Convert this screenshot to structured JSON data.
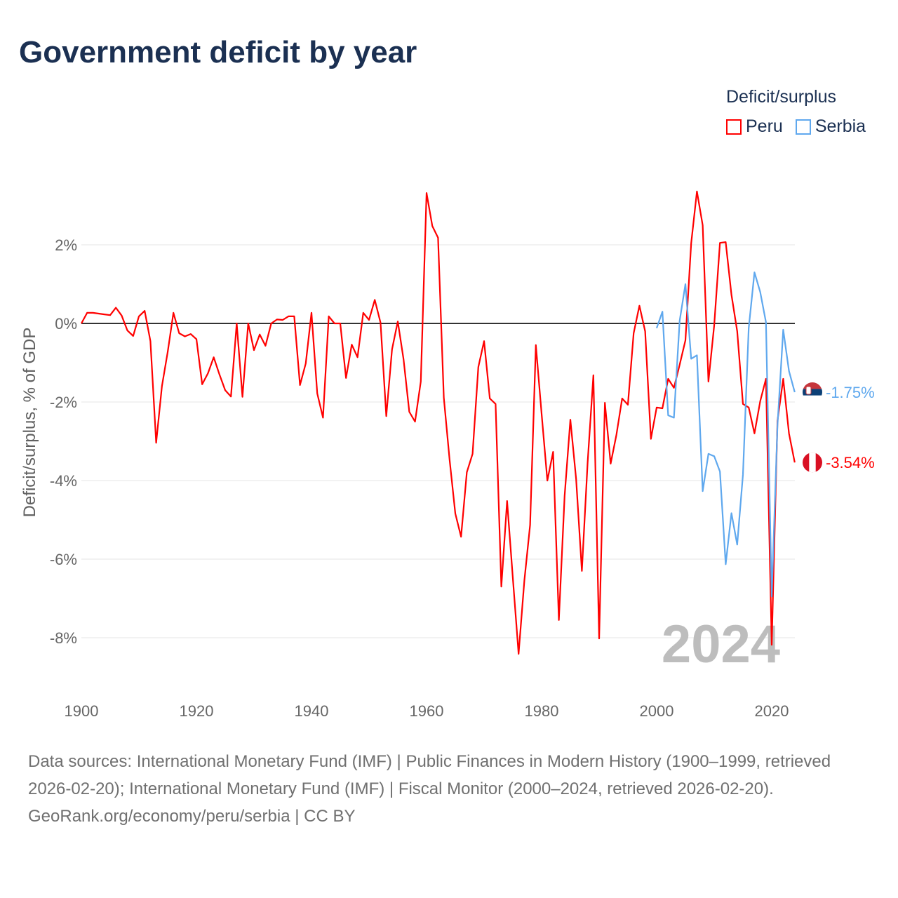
{
  "title": "Government deficit by year",
  "legend": {
    "title": "Deficit/surplus",
    "items": [
      {
        "name": "Peru",
        "color": "#ff0000"
      },
      {
        "name": "Serbia",
        "color": "#5fa8ee"
      }
    ]
  },
  "chart_data": {
    "type": "line",
    "title": "Government deficit by year",
    "xlabel": "",
    "ylabel": "Deficit/surplus, % of GDP",
    "xlim": [
      1900,
      2024
    ],
    "ylim": [
      -9.3,
      3.6
    ],
    "x_ticks": [
      1900,
      1920,
      1940,
      1960,
      1980,
      2000,
      2020
    ],
    "x_tick_labels": [
      "1900",
      "1920",
      "1940",
      "1960",
      "1980",
      "2000",
      "2020"
    ],
    "y_ticks": [
      2,
      0,
      -2,
      -4,
      -6,
      -8
    ],
    "y_tick_labels": [
      "2%",
      "0%",
      "-2%",
      "-4%",
      "-6%",
      "-8%"
    ],
    "grid": true,
    "legend_position": "top-right",
    "current_year_label": "2024",
    "series": [
      {
        "name": "Peru",
        "color": "#ff0000",
        "start_year": 1900,
        "end_label": "-3.54%",
        "values": [
          0,
          0.27,
          0.27,
          0.25,
          0.23,
          0.21,
          0.4,
          0.2,
          -0.18,
          -0.32,
          0.18,
          0.32,
          -0.45,
          -3.04,
          -1.6,
          -0.73,
          0.27,
          -0.25,
          -0.33,
          -0.27,
          -0.4,
          -1.55,
          -1.27,
          -0.86,
          -1.3,
          -1.7,
          -1.86,
          0,
          -1.87,
          0,
          -0.68,
          -0.28,
          -0.57,
          0,
          0.1,
          0.09,
          0.18,
          0.18,
          -1.57,
          -1.02,
          0.27,
          -1.78,
          -2.4,
          0.18,
          0,
          0,
          -1.39,
          -0.54,
          -0.86,
          0.27,
          0.09,
          0.6,
          0.02,
          -2.36,
          -0.66,
          0.05,
          -0.91,
          -2.25,
          -2.5,
          -1.48,
          3.32,
          2.48,
          2.18,
          -1.89,
          -3.46,
          -4.84,
          -5.43,
          -3.79,
          -3.32,
          -1.11,
          -0.45,
          -1.91,
          -2.05,
          -6.7,
          -4.52,
          -6.48,
          -8.41,
          -6.55,
          -5.13,
          -0.55,
          -2.3,
          -4.0,
          -3.27,
          -7.55,
          -4.39,
          -2.45,
          -3.96,
          -6.3,
          -3.54,
          -1.32,
          -8.02,
          -2.02,
          -3.57,
          -2.84,
          -1.91,
          -2.07,
          -0.25,
          0.45,
          -0.2,
          -2.94,
          -2.14,
          -2.16,
          -1.41,
          -1.64,
          -1.05,
          -0.43,
          2.04,
          3.36,
          2.5,
          -1.48,
          -0.05,
          2.05,
          2.07,
          0.73,
          -0.2,
          -2.05,
          -2.14,
          -2.8,
          -1.98,
          -1.41,
          -8.18,
          -2.48,
          -1.41,
          -2.8,
          -3.54
        ]
      },
      {
        "name": "Serbia",
        "color": "#5fa8ee",
        "start_year": 2000,
        "end_label": "-1.75%",
        "values": [
          -0.12,
          0.3,
          -2.34,
          -2.4,
          0.07,
          1.0,
          -0.9,
          -0.81,
          -4.27,
          -3.32,
          -3.38,
          -3.77,
          -6.13,
          -4.83,
          -5.63,
          -3.85,
          -0.12,
          1.3,
          0.8,
          0.03,
          -6.95,
          -2.6,
          -0.16,
          -1.21,
          -1.75
        ]
      }
    ]
  },
  "footer": {
    "sources": "Data sources: International Monetary Fund (IMF) | Public Finances in Modern History (1900–1999, retrieved 2026-02-20); International Monetary Fund (IMF) | Fiscal Monitor (2000–2024, retrieved 2026-02-20).",
    "credit": "GeoRank.org/economy/peru/serbia | CC BY"
  }
}
